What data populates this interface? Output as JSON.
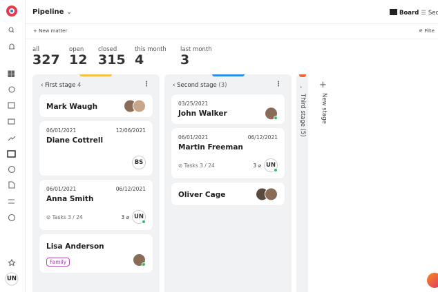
{
  "header": {
    "title": "Pipeline",
    "view": "Board",
    "view2": "Sec",
    "filter": "Filte",
    "new_matter": "New matter"
  },
  "stats": [
    {
      "label": "all",
      "value": "327"
    },
    {
      "label": "open",
      "value": "12"
    },
    {
      "label": "closed",
      "value": "315"
    },
    {
      "label": "this month",
      "value": "4"
    },
    {
      "label": "last month",
      "value": "3"
    }
  ],
  "columns": [
    {
      "title": "First stage",
      "count": "4",
      "cards": [
        {
          "name": "Mark Waugh"
        },
        {
          "date_start": "06/01/2021",
          "date_end": "12/06/2021",
          "name": "Diane Cottrell",
          "initials": "BS"
        },
        {
          "date_start": "06/01/2021",
          "date_end": "06/12/2021",
          "name": "Anna Smith",
          "tasks": "Tasks 3 / 24",
          "attachments": "3",
          "initials": "UN"
        },
        {
          "name": "Lisa Anderson",
          "tag": "Family"
        }
      ]
    },
    {
      "title": "Second stage",
      "count": "(3)",
      "cards": [
        {
          "date_start": "03/25/2021",
          "name": "John Walker"
        },
        {
          "date_start": "06/01/2021",
          "date_end": "06/12/2021",
          "name": "Martin Freeman",
          "tasks": "Tasks 3 / 24",
          "attachments": "3",
          "initials": "UN"
        },
        {
          "name": "Oliver Cage"
        }
      ]
    }
  ],
  "third_stage": "Third stage (5)",
  "new_stage": "New stage",
  "user": "UN"
}
